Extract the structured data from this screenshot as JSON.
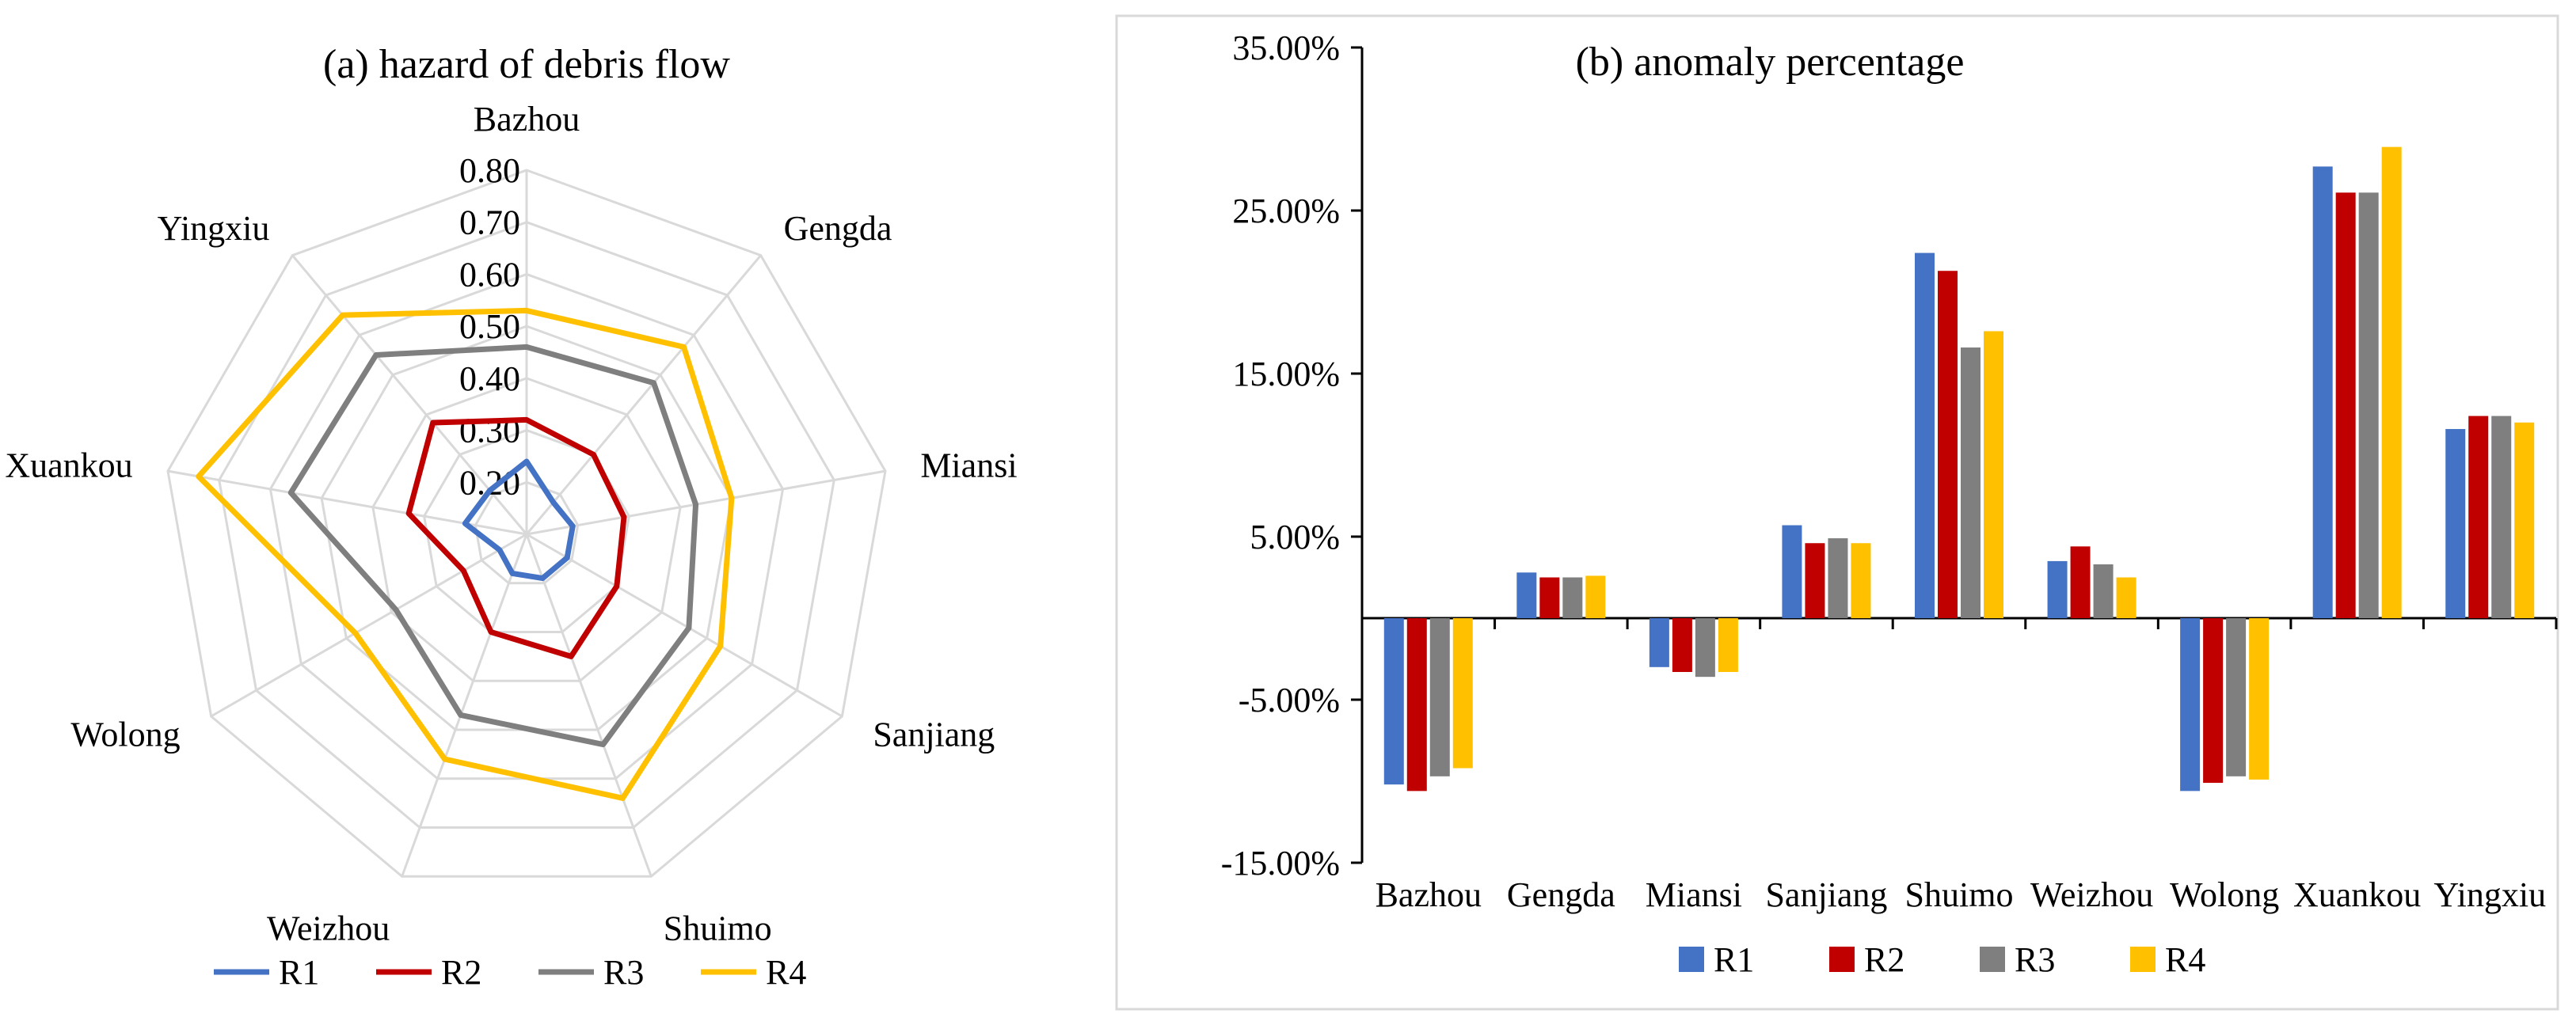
{
  "chart_data": [
    {
      "type": "radar",
      "title": "(a)  hazard of debris flow",
      "axes": [
        "Bazhou",
        "Gengda",
        "Miansi",
        "Sanjiang",
        "Shuimo",
        "Weizhou",
        "Wolong",
        "Xuankou",
        "Yingxiu"
      ],
      "rlim": [
        0.1,
        0.8
      ],
      "tick_labels": [
        "0.20",
        "0.30",
        "0.40",
        "0.50",
        "0.60",
        "0.70",
        "0.80"
      ],
      "tick_values": [
        0.2,
        0.3,
        0.4,
        0.5,
        0.6,
        0.7,
        0.8
      ],
      "grid": true,
      "legend": "bottom",
      "series": [
        {
          "name": "R1",
          "color": "#4472C4",
          "values": [
            0.24,
            0.18,
            0.19,
            0.19,
            0.19,
            0.18,
            0.16,
            0.22,
            0.21
          ]
        },
        {
          "name": "R2",
          "color": "#C00000",
          "values": [
            0.32,
            0.3,
            0.29,
            0.3,
            0.35,
            0.3,
            0.24,
            0.33,
            0.38
          ]
        },
        {
          "name": "R3",
          "color": "#7F7F7F",
          "values": [
            0.46,
            0.48,
            0.43,
            0.46,
            0.53,
            0.47,
            0.39,
            0.56,
            0.55
          ]
        },
        {
          "name": "R4",
          "color": "#FFC000",
          "values": [
            0.53,
            0.57,
            0.5,
            0.53,
            0.64,
            0.56,
            0.48,
            0.74,
            0.65
          ]
        }
      ]
    },
    {
      "type": "bar",
      "title": "(b)  anomaly percentage",
      "categories": [
        "Bazhou",
        "Gengda",
        "Miansi",
        "Sanjiang",
        "Shuimo",
        "Weizhou",
        "Wolong",
        "Xuankou",
        "Yingxiu"
      ],
      "ylim": [
        -15,
        35
      ],
      "y_ticks": [
        -15,
        -5,
        5,
        15,
        25,
        35
      ],
      "y_tick_labels": [
        "-15.00%",
        "-5.00%",
        "5.00%",
        "15.00%",
        "25.00%",
        "35.00%"
      ],
      "legend": "bottom",
      "series": [
        {
          "name": "R1",
          "color": "#4472C4",
          "values": [
            -10.2,
            2.8,
            -3.0,
            5.7,
            22.4,
            3.5,
            -10.6,
            27.7,
            11.6
          ]
        },
        {
          "name": "R2",
          "color": "#C00000",
          "values": [
            -10.6,
            2.5,
            -3.3,
            4.6,
            21.3,
            4.4,
            -10.1,
            26.1,
            12.4
          ]
        },
        {
          "name": "R3",
          "color": "#7F7F7F",
          "values": [
            -9.7,
            2.5,
            -3.6,
            4.9,
            16.6,
            3.3,
            -9.7,
            26.1,
            12.4
          ]
        },
        {
          "name": "R4",
          "color": "#FFC000",
          "values": [
            -9.2,
            2.6,
            -3.3,
            4.6,
            17.6,
            2.5,
            -9.9,
            28.9,
            12.0
          ]
        }
      ]
    }
  ]
}
